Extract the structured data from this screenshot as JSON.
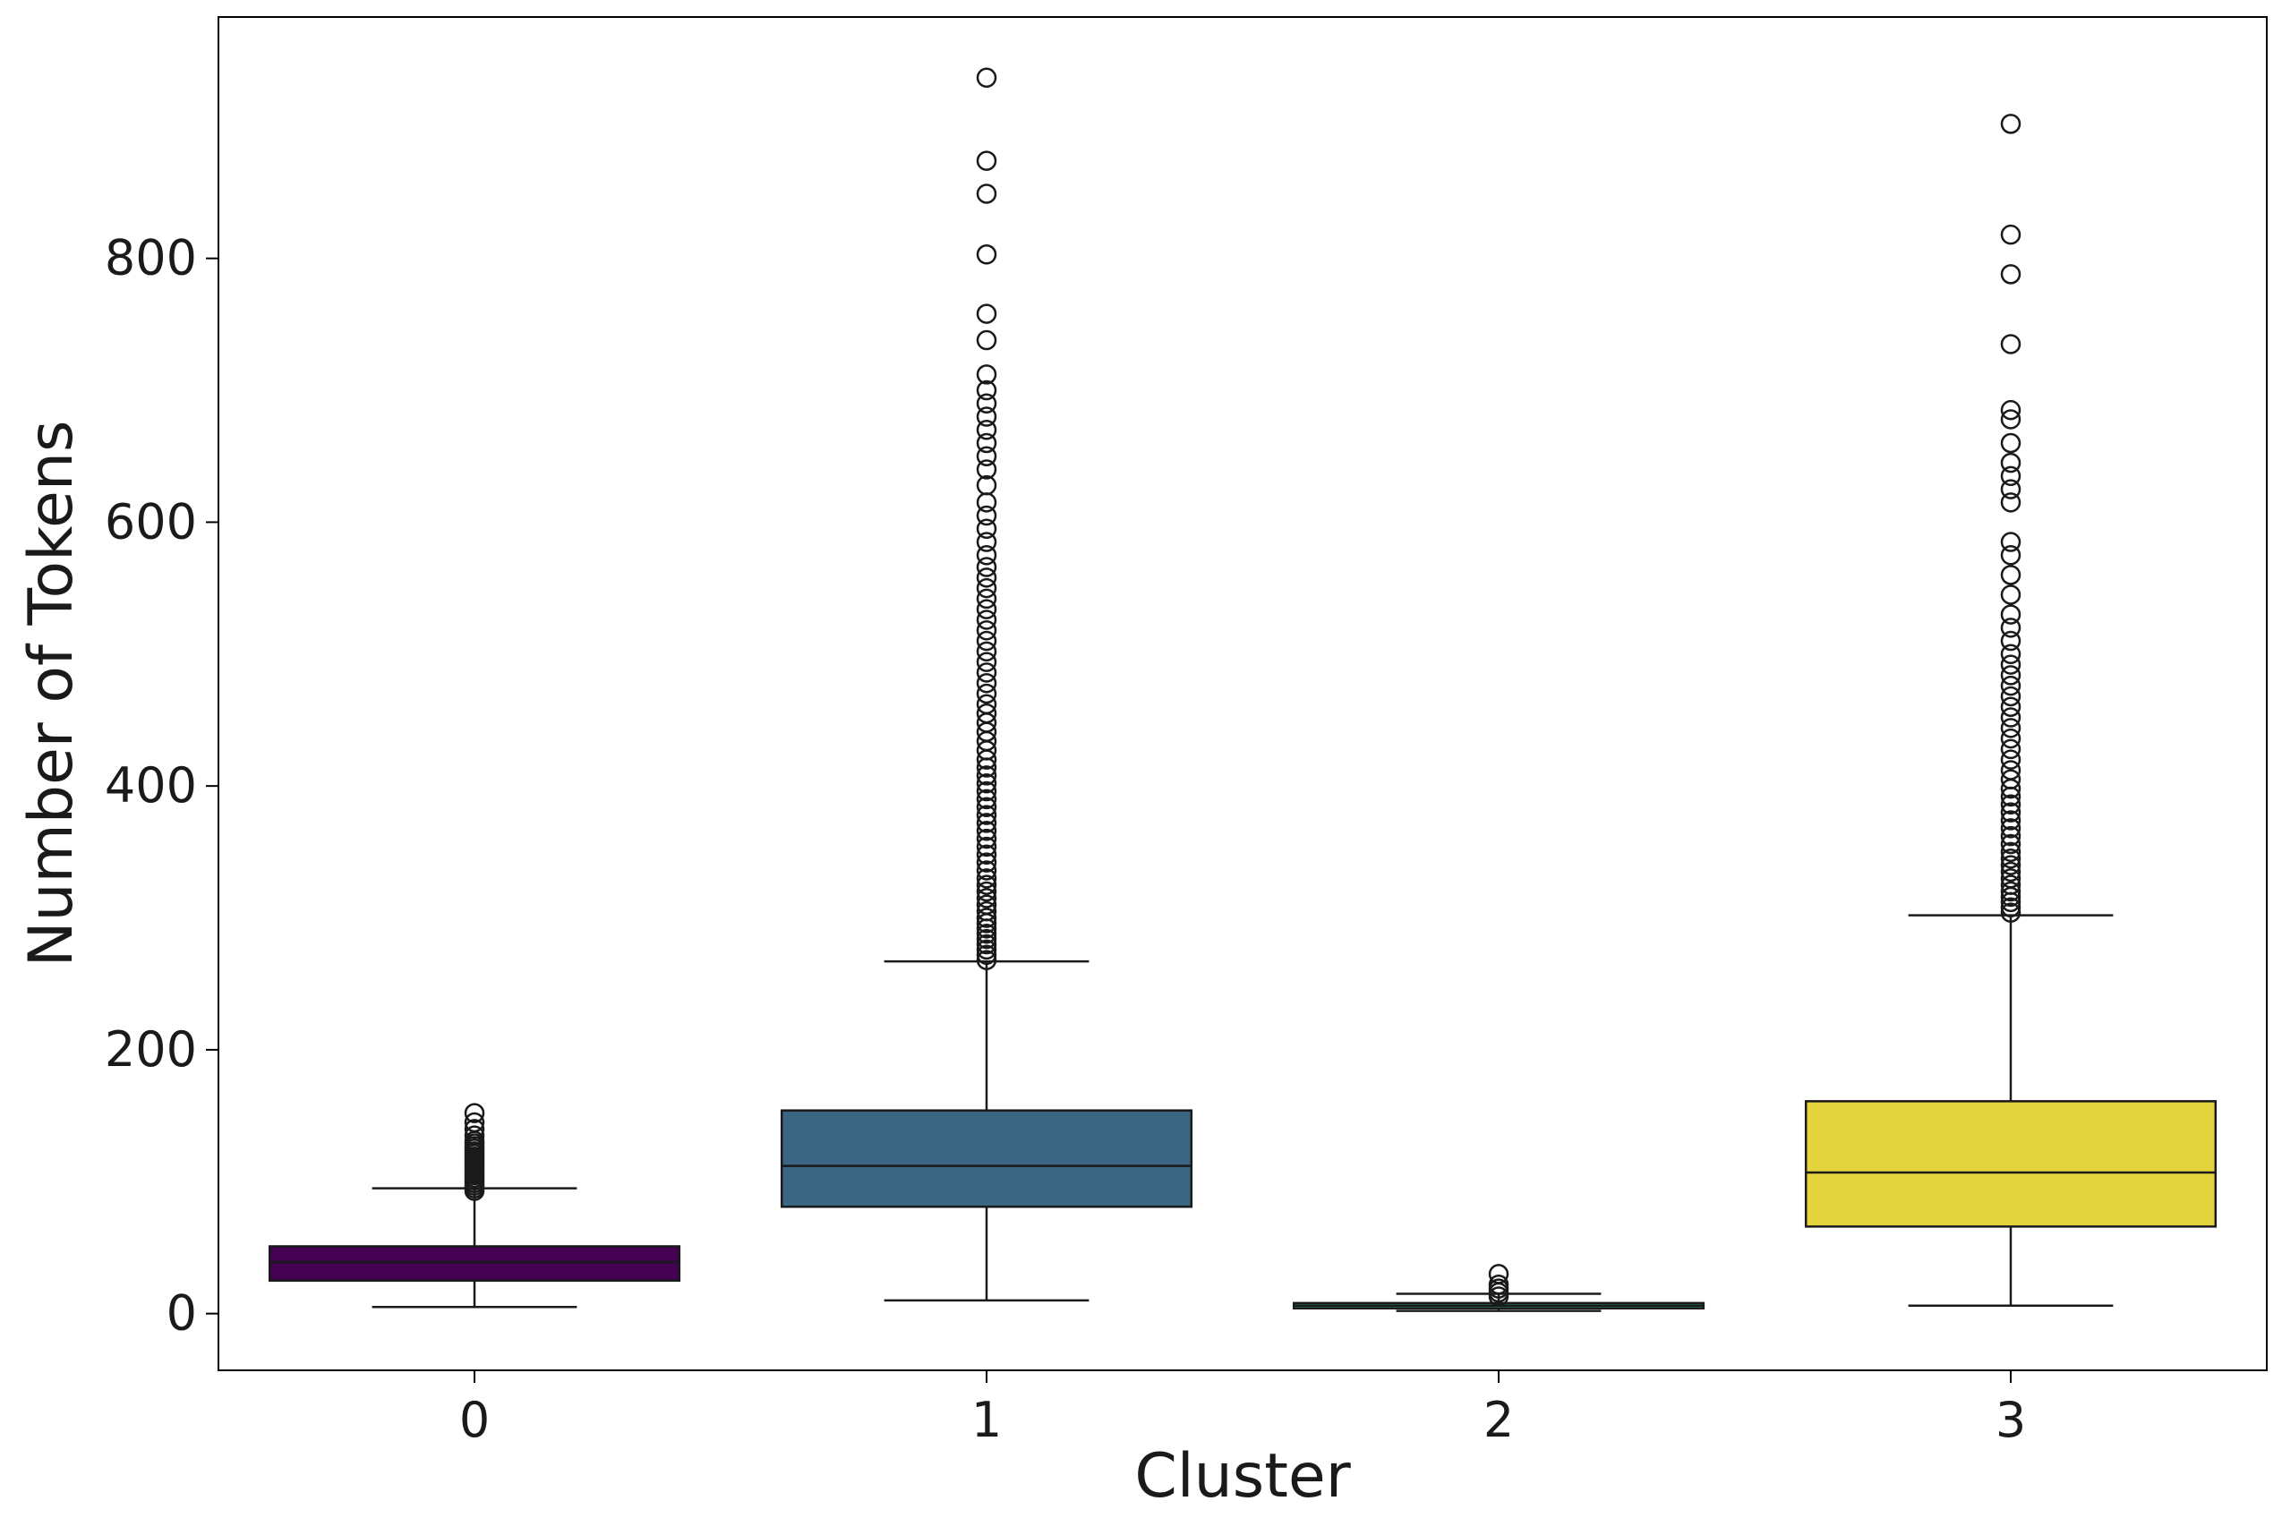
{
  "chart_data": {
    "type": "box",
    "title": "",
    "xlabel": "Cluster",
    "ylabel": "Number of Tokens",
    "ylim": [
      -43,
      983
    ],
    "yticks": [
      0,
      200,
      400,
      600,
      800
    ],
    "grid": false,
    "legend": "none",
    "categories": [
      "0",
      "1",
      "2",
      "3"
    ],
    "boxes": [
      {
        "category": "0",
        "color": "#440154",
        "whisker_low": 5,
        "q1": 25,
        "median": 39,
        "q3": 51,
        "whisker_high": 95,
        "outliers": [
          93,
          95,
          97,
          99,
          101,
          103,
          105,
          107,
          109,
          111,
          113,
          115,
          117,
          119,
          121,
          123,
          125,
          127,
          129,
          131,
          135,
          140,
          145,
          152
        ]
      },
      {
        "category": "1",
        "color": "#3b6683",
        "whisker_low": 10,
        "q1": 81,
        "median": 112,
        "q3": 154,
        "whisker_high": 267,
        "outliers": [
          268,
          272,
          276,
          280,
          284,
          288,
          292,
          296,
          300,
          305,
          310,
          315,
          320,
          325,
          330,
          336,
          342,
          348,
          354,
          360,
          366,
          372,
          378,
          384,
          390,
          396,
          402,
          408,
          414,
          420,
          427,
          434,
          441,
          448,
          455,
          462,
          470,
          478,
          486,
          494,
          502,
          510,
          518,
          526,
          534,
          542,
          550,
          558,
          566,
          575,
          585,
          595,
          605,
          615,
          628,
          640,
          650,
          660,
          670,
          680,
          690,
          700,
          712,
          738,
          758,
          803,
          849,
          874,
          937
        ]
      },
      {
        "category": "2",
        "color": "#2a9c7a",
        "whisker_low": 2,
        "q1": 4,
        "median": 6,
        "q3": 8,
        "whisker_high": 15,
        "outliers": [
          13,
          16,
          19,
          22,
          30
        ]
      },
      {
        "category": "3",
        "color": "#e3d33c",
        "whisker_low": 6,
        "q1": 66,
        "median": 107,
        "q3": 161,
        "whisker_high": 302,
        "outliers": [
          304,
          308,
          312,
          316,
          320,
          325,
          330,
          335,
          340,
          345,
          350,
          356,
          362,
          368,
          374,
          380,
          386,
          392,
          398,
          405,
          412,
          420,
          428,
          436,
          444,
          452,
          460,
          468,
          476,
          484,
          492,
          500,
          510,
          520,
          530,
          545,
          560,
          575,
          585,
          615,
          625,
          635,
          645,
          660,
          678,
          685,
          735,
          788,
          818,
          902
        ]
      }
    ]
  }
}
